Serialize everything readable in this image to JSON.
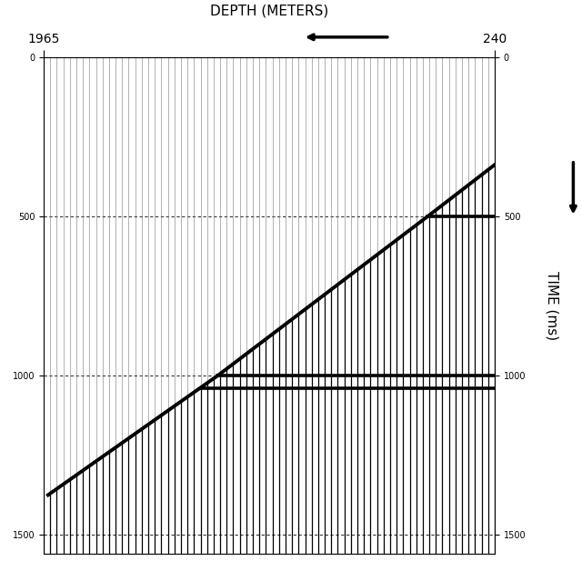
{
  "chart_data": {
    "type": "seismic_wiggle",
    "x_label": "DEPTH (METERS)",
    "y_label": "TIME (ms)",
    "xlim": [
      1965,
      240
    ],
    "xticks": [
      1965,
      240
    ],
    "ylim": [
      1560,
      0
    ],
    "yticks": [
      0,
      500,
      1000,
      1500
    ],
    "grid": true,
    "trace_depths": [
      240,
      265,
      290,
      315,
      340,
      365,
      390,
      415,
      440,
      465,
      490,
      515,
      540,
      565,
      590,
      615,
      640,
      665,
      690,
      715,
      740,
      765,
      790,
      815,
      840,
      865,
      890,
      915,
      940,
      965,
      990,
      1015,
      1040,
      1065,
      1090,
      1115,
      1140,
      1165,
      1190,
      1215,
      1240,
      1265,
      1290,
      1315,
      1340,
      1365,
      1390,
      1415,
      1440,
      1465,
      1490,
      1515,
      1540,
      1565,
      1590,
      1615,
      1640,
      1665,
      1690,
      1715,
      1740,
      1765,
      1790,
      1815,
      1840,
      1865,
      1890,
      1915,
      1940,
      1965
    ],
    "first_arrival": {
      "x": [
        240,
        496,
        1299,
        1948
      ],
      "values": [
        338,
        500,
        1000,
        1375
      ]
    },
    "reflections": [
      {
        "x": [
          240,
          496
        ],
        "values": [
          500,
          500
        ]
      },
      {
        "x": [
          240,
          1299
        ],
        "values": [
          1000,
          1000
        ]
      },
      {
        "x": [
          240,
          1360
        ],
        "values": [
          1040,
          1040
        ]
      }
    ]
  }
}
